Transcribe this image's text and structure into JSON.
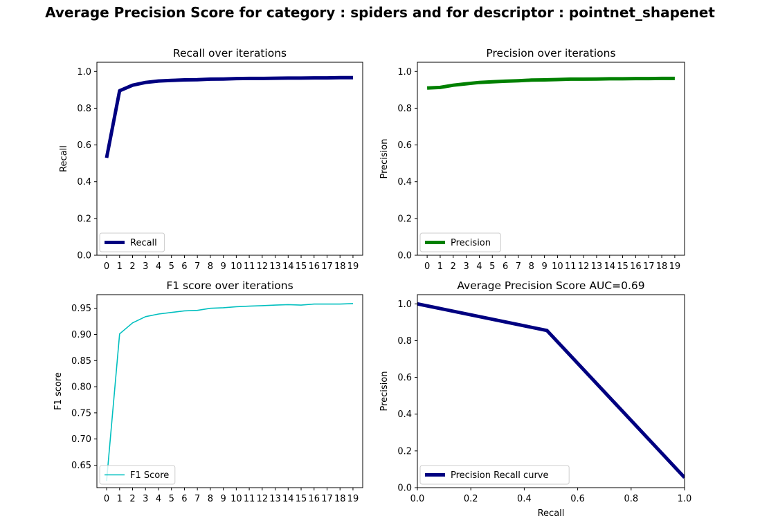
{
  "suptitle": "Average Precision Score for category : spiders and for descriptor : pointnet_shapenet",
  "chart_data": [
    {
      "type": "line",
      "title": "Recall over iterations",
      "xlabel": "",
      "ylabel": "Recall",
      "x": [
        0,
        1,
        2,
        3,
        4,
        5,
        6,
        7,
        8,
        9,
        10,
        11,
        12,
        13,
        14,
        15,
        16,
        17,
        18,
        19
      ],
      "ylim": [
        0,
        1.05
      ],
      "yticks": [
        0.0,
        0.2,
        0.4,
        0.6,
        0.8,
        1.0
      ],
      "ytick_labels": [
        "0.0",
        "0.2",
        "0.4",
        "0.6",
        "0.8",
        "1.0"
      ],
      "grid": false,
      "legend_position": "lower-left",
      "series": [
        {
          "name": "Recall",
          "color": "#000080",
          "line_width": "thick",
          "values": [
            0.53,
            0.895,
            0.925,
            0.94,
            0.948,
            0.951,
            0.954,
            0.955,
            0.958,
            0.959,
            0.961,
            0.962,
            0.962,
            0.963,
            0.964,
            0.964,
            0.965,
            0.965,
            0.966,
            0.966
          ]
        }
      ]
    },
    {
      "type": "line",
      "title": "Precision over iterations",
      "xlabel": "",
      "ylabel": "Precision",
      "x": [
        0,
        1,
        2,
        3,
        4,
        5,
        6,
        7,
        8,
        9,
        10,
        11,
        12,
        13,
        14,
        15,
        16,
        17,
        18,
        19
      ],
      "ylim": [
        0,
        1.05
      ],
      "yticks": [
        0.0,
        0.2,
        0.4,
        0.6,
        0.8,
        1.0
      ],
      "ytick_labels": [
        "0.0",
        "0.2",
        "0.4",
        "0.6",
        "0.8",
        "1.0"
      ],
      "grid": false,
      "legend_position": "lower-left",
      "series": [
        {
          "name": "Precision",
          "color": "#008000",
          "line_width": "thick",
          "values": [
            0.91,
            0.913,
            0.925,
            0.933,
            0.94,
            0.944,
            0.947,
            0.949,
            0.953,
            0.954,
            0.956,
            0.958,
            0.958,
            0.959,
            0.96,
            0.96,
            0.961,
            0.961,
            0.962,
            0.962
          ]
        }
      ]
    },
    {
      "type": "line",
      "title": "F1 score over iterations",
      "xlabel": "",
      "ylabel": "F1 score",
      "x": [
        0,
        1,
        2,
        3,
        4,
        5,
        6,
        7,
        8,
        9,
        10,
        11,
        12,
        13,
        14,
        15,
        16,
        17,
        18,
        19
      ],
      "ylim": [
        0.607,
        0.976
      ],
      "yticks": [
        0.65,
        0.7,
        0.75,
        0.8,
        0.85,
        0.9,
        0.95
      ],
      "ytick_labels": [
        "0.65",
        "0.70",
        "0.75",
        "0.80",
        "0.85",
        "0.90",
        "0.95"
      ],
      "grid": false,
      "legend_position": "lower-left",
      "series": [
        {
          "name": "F1 Score",
          "color": "#00bfbf",
          "line_width": "thin",
          "values": [
            0.62,
            0.901,
            0.922,
            0.934,
            0.939,
            0.942,
            0.945,
            0.946,
            0.95,
            0.951,
            0.953,
            0.954,
            0.955,
            0.956,
            0.957,
            0.956,
            0.958,
            0.958,
            0.958,
            0.959
          ]
        }
      ]
    },
    {
      "type": "line",
      "title": "Average Precision Score AUC=0.69",
      "xlabel": "Recall",
      "ylabel": "Precision",
      "xlim": [
        0,
        1
      ],
      "ylim": [
        0,
        1.05
      ],
      "xticks": [
        0.0,
        0.2,
        0.4,
        0.6,
        0.8,
        1.0
      ],
      "xtick_labels": [
        "0.0",
        "0.2",
        "0.4",
        "0.6",
        "0.8",
        "1.0"
      ],
      "yticks": [
        0.0,
        0.2,
        0.4,
        0.6,
        0.8,
        1.0
      ],
      "ytick_labels": [
        "0.0",
        "0.2",
        "0.4",
        "0.6",
        "0.8",
        "1.0"
      ],
      "grid": false,
      "legend_position": "lower-left",
      "series": [
        {
          "name": "Precision Recall curve",
          "color": "#000080",
          "line_width": "thick",
          "x": [
            0.0,
            0.485,
            1.0
          ],
          "values": [
            1.0,
            0.855,
            0.055
          ]
        }
      ]
    }
  ]
}
